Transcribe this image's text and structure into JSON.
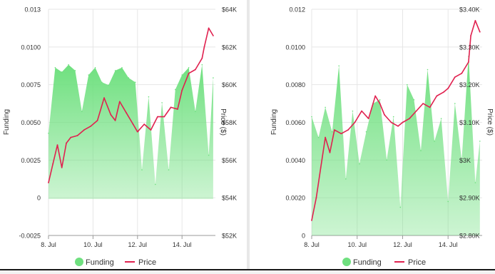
{
  "charts": [
    {
      "left_axis_label": "Funding",
      "right_axis_label": "Price ($)",
      "legend": {
        "funding": "Funding",
        "price": "Price"
      }
    },
    {
      "left_axis_label": "Funding",
      "right_axis_label": "Price ($)",
      "legend": {
        "funding": "Funding",
        "price": "Price"
      }
    }
  ],
  "colors": {
    "funding_fill": "#6fe07f",
    "funding_negative": "#e8294a",
    "price_line": "#e0214f",
    "grid": "#e6e6e6"
  },
  "chart_data": [
    {
      "type": "area",
      "x_ticks": [
        "8. Jul",
        "10. Jul",
        "12. Jul",
        "14. Jul"
      ],
      "left_axis": {
        "label": "Funding",
        "range": [
          -0.0025,
          0.013
        ],
        "ticks": [
          "-0.0025",
          "0",
          "0.0025",
          "0.0050",
          "0.0075",
          "0.0100",
          "0.013"
        ]
      },
      "right_axis": {
        "label": "Price ($)",
        "range": [
          52000,
          64000
        ],
        "ticks": [
          "$52K",
          "$54K",
          "$56K",
          "$58K",
          "$60K",
          "$62K",
          "$64K"
        ]
      },
      "series": [
        {
          "name": "Funding",
          "axis": "left",
          "kind": "area",
          "x": [
            8.0,
            8.3,
            8.6,
            8.9,
            9.2,
            9.5,
            9.8,
            10.1,
            10.4,
            10.7,
            11.0,
            11.3,
            11.6,
            11.9,
            12.2,
            12.5,
            12.8,
            13.1,
            13.4,
            13.7,
            14.0,
            14.3,
            14.6,
            14.9,
            15.2,
            15.4
          ],
          "values": [
            0.0045,
            0.009,
            0.0087,
            0.0092,
            0.0088,
            0.006,
            0.0085,
            0.009,
            0.008,
            0.0078,
            0.0088,
            0.009,
            0.0083,
            0.008,
            0.002,
            0.007,
            0.001,
            0.0066,
            0.002,
            0.0075,
            0.0085,
            0.009,
            0.006,
            0.0092,
            0.003,
            0.0083
          ]
        },
        {
          "name": "Price",
          "axis": "right",
          "kind": "line",
          "x": [
            8.0,
            8.2,
            8.4,
            8.6,
            8.8,
            9.0,
            9.3,
            9.6,
            9.9,
            10.2,
            10.5,
            10.8,
            11.0,
            11.2,
            11.5,
            11.8,
            12.0,
            12.3,
            12.6,
            12.9,
            13.2,
            13.5,
            13.8,
            14.0,
            14.3,
            14.6,
            14.9,
            15.0,
            15.2,
            15.4
          ],
          "values": [
            54800,
            55800,
            56800,
            55600,
            56900,
            57200,
            57300,
            57600,
            57800,
            58100,
            59300,
            58400,
            58100,
            59100,
            58500,
            57900,
            57500,
            57900,
            57600,
            58300,
            58300,
            58800,
            58700,
            59700,
            60600,
            60800,
            61400,
            62000,
            63000,
            62600
          ]
        }
      ]
    },
    {
      "type": "area",
      "x_ticks": [
        "8. Jul",
        "10. Jul",
        "12. Jul",
        "14. Jul"
      ],
      "left_axis": {
        "label": "Funding",
        "range": [
          0,
          0.012
        ],
        "ticks": [
          "0",
          "0.0020",
          "0.0040",
          "0.0060",
          "0.0080",
          "0.0100",
          "0.012"
        ]
      },
      "right_axis": {
        "label": "Price ($)",
        "range": [
          2800,
          3400
        ],
        "ticks": [
          "$2.80K",
          "$2.90K",
          "$3K",
          "$3.10K",
          "$3.20K",
          "$3.30K",
          "$3.40K"
        ]
      },
      "series": [
        {
          "name": "Funding",
          "axis": "left",
          "kind": "area",
          "x": [
            8.0,
            8.3,
            8.6,
            8.9,
            9.2,
            9.5,
            9.8,
            10.1,
            10.4,
            10.7,
            11.0,
            11.3,
            11.6,
            11.9,
            12.2,
            12.5,
            12.8,
            13.1,
            13.4,
            13.7,
            14.0,
            14.3,
            14.6,
            14.9,
            15.2,
            15.4
          ],
          "values": [
            0.0063,
            0.0052,
            0.0068,
            0.0055,
            0.009,
            0.003,
            0.0066,
            0.0038,
            0.0055,
            0.007,
            0.0072,
            0.004,
            0.0063,
            0.0015,
            0.008,
            0.0072,
            0.0045,
            0.0088,
            0.005,
            0.0062,
            0.0018,
            0.007,
            0.004,
            0.0095,
            0.0028,
            0.005
          ]
        },
        {
          "name": "Price",
          "axis": "right",
          "kind": "line",
          "x": [
            8.0,
            8.2,
            8.4,
            8.6,
            8.8,
            9.0,
            9.3,
            9.6,
            9.9,
            10.2,
            10.5,
            10.8,
            11.0,
            11.2,
            11.5,
            11.8,
            12.0,
            12.3,
            12.6,
            12.9,
            13.2,
            13.5,
            13.8,
            14.0,
            14.3,
            14.6,
            14.9,
            15.0,
            15.2,
            15.4
          ],
          "values": [
            2840,
            2900,
            2980,
            3060,
            3020,
            3080,
            3070,
            3080,
            3100,
            3130,
            3110,
            3170,
            3150,
            3120,
            3100,
            3090,
            3100,
            3110,
            3130,
            3150,
            3140,
            3170,
            3180,
            3190,
            3220,
            3230,
            3260,
            3330,
            3370,
            3340
          ]
        }
      ]
    }
  ]
}
